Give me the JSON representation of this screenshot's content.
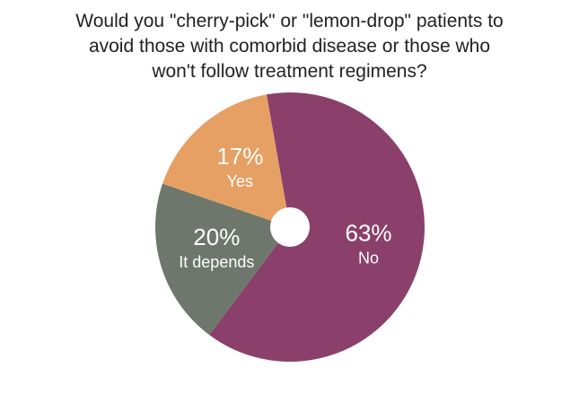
{
  "chart_data": {
    "type": "pie",
    "title": "Would you \"cherry-pick\" or \"lemon-drop\" patients to avoid those with comorbid disease or those who won't follow treatment regimens?",
    "categories": [
      "No",
      "It depends",
      "Yes"
    ],
    "values": [
      63,
      20,
      17
    ],
    "value_labels": [
      "63%",
      "20%",
      "17%"
    ],
    "colors": [
      "#8a406b",
      "#6d776b",
      "#e6a064"
    ]
  }
}
